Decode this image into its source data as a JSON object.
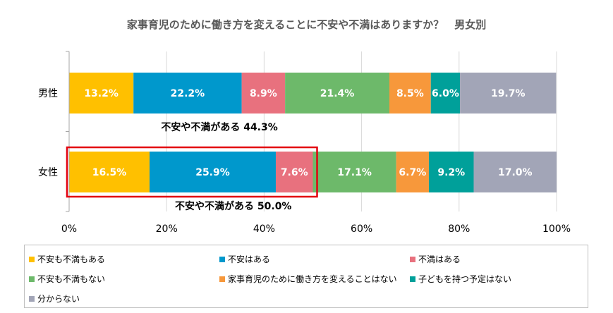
{
  "chart_data": {
    "type": "bar",
    "orientation": "horizontal",
    "stacked": true,
    "title": "家事育児のために働き方を変えることに不安や不満はありますか？　男女別",
    "categories": [
      "男性",
      "女性"
    ],
    "xlim": [
      0,
      100
    ],
    "x_ticks": [
      "0%",
      "20%",
      "40%",
      "60%",
      "80%",
      "100%"
    ],
    "grid": true,
    "legend_position": "bottom",
    "series": [
      {
        "name": "不安も不満もある",
        "color": "#ffc000",
        "values": [
          13.2,
          16.5
        ]
      },
      {
        "name": "不安はある",
        "color": "#0098cc",
        "values": [
          22.2,
          25.9
        ]
      },
      {
        "name": "不満はある",
        "color": "#e8717e",
        "values": [
          8.9,
          7.6
        ]
      },
      {
        "name": "不安も不満もない",
        "color": "#6db96a",
        "values": [
          21.4,
          17.1
        ]
      },
      {
        "name": "家事育児のために働き方を変えることはない",
        "color": "#f7983b",
        "values": [
          8.5,
          6.7
        ]
      },
      {
        "name": "子どもを持つ予定はない",
        "color": "#00a09a",
        "values": [
          6.0,
          9.2
        ]
      },
      {
        "name": "分からない",
        "color": "#a2a5b7",
        "values": [
          19.7,
          17.0
        ]
      }
    ],
    "annotations": [
      {
        "category": "男性",
        "text": "不安や不満がある  44.3%"
      },
      {
        "category": "女性",
        "text": "不安や不満がある  50.0%"
      }
    ],
    "highlight_color": "#e3000f"
  }
}
